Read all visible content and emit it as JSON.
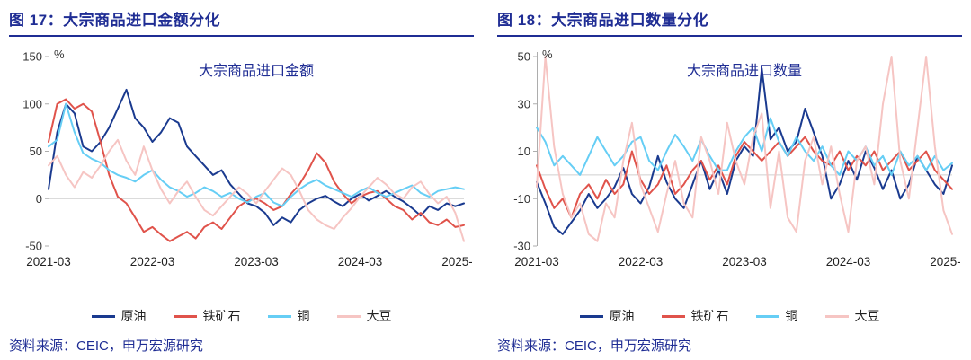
{
  "figures": [
    {
      "title": "图 17：大宗商品进口金额分化",
      "source": "资料来源：CEIC，申万宏源研究"
    },
    {
      "title": "图 18：大宗商品进口数量分化",
      "source": "资料来源：CEIC，申万宏源研究"
    }
  ],
  "chart_data": [
    {
      "type": "line",
      "title": "大宗商品进口金额",
      "ylabel": "%",
      "ylim": [
        -50,
        150
      ],
      "yticks": [
        150,
        100,
        50,
        0,
        -50
      ],
      "grid": "zero-line-only",
      "legend_position": "bottom",
      "xticks": [
        "2021-03",
        "2022-03",
        "2023-03",
        "2024-03",
        "2025-03"
      ],
      "x": [
        "2021-03",
        "2021-04",
        "2021-05",
        "2021-06",
        "2021-07",
        "2021-08",
        "2021-09",
        "2021-10",
        "2021-11",
        "2021-12",
        "2022-01",
        "2022-02",
        "2022-03",
        "2022-04",
        "2022-05",
        "2022-06",
        "2022-07",
        "2022-08",
        "2022-09",
        "2022-10",
        "2022-11",
        "2022-12",
        "2023-01",
        "2023-02",
        "2023-03",
        "2023-04",
        "2023-05",
        "2023-06",
        "2023-07",
        "2023-08",
        "2023-09",
        "2023-10",
        "2023-11",
        "2023-12",
        "2024-01",
        "2024-02",
        "2024-03",
        "2024-04",
        "2024-05",
        "2024-06",
        "2024-07",
        "2024-08",
        "2024-09",
        "2024-10",
        "2024-11",
        "2024-12",
        "2025-01",
        "2025-02",
        "2025-03"
      ],
      "series": [
        {
          "id": "crude-oil",
          "name": "原油",
          "color": "#1a3a8f",
          "values": [
            10,
            70,
            100,
            90,
            55,
            50,
            60,
            75,
            95,
            115,
            85,
            75,
            60,
            70,
            85,
            80,
            55,
            45,
            35,
            25,
            30,
            15,
            5,
            -5,
            -8,
            -15,
            -28,
            -20,
            -25,
            -12,
            -5,
            0,
            3,
            -3,
            -8,
            0,
            5,
            -2,
            3,
            8,
            2,
            -3,
            -10,
            -18,
            -8,
            -12,
            -5,
            -8,
            -5
          ]
        },
        {
          "id": "iron-ore",
          "name": "铁矿石",
          "color": "#e0534b",
          "values": [
            60,
            100,
            105,
            95,
            100,
            92,
            60,
            25,
            2,
            -5,
            -20,
            -35,
            -30,
            -38,
            -45,
            -40,
            -35,
            -42,
            -30,
            -25,
            -32,
            -20,
            -8,
            -2,
            0,
            -5,
            -12,
            -8,
            5,
            15,
            30,
            48,
            38,
            18,
            5,
            -5,
            2,
            6,
            8,
            0,
            -8,
            -12,
            -22,
            -15,
            -25,
            -28,
            -22,
            -30,
            -28
          ]
        },
        {
          "id": "copper",
          "name": "铜",
          "color": "#66cef5",
          "values": [
            55,
            62,
            100,
            70,
            48,
            42,
            38,
            30,
            25,
            22,
            18,
            25,
            30,
            20,
            12,
            8,
            2,
            6,
            12,
            8,
            2,
            6,
            0,
            -4,
            2,
            6,
            -4,
            -8,
            2,
            10,
            16,
            20,
            14,
            10,
            6,
            2,
            8,
            12,
            6,
            2,
            6,
            10,
            14,
            6,
            2,
            8,
            10,
            12,
            10
          ]
        },
        {
          "id": "soybean",
          "name": "大豆",
          "color": "#f6c5c3",
          "values": [
            35,
            45,
            25,
            12,
            28,
            22,
            35,
            50,
            62,
            40,
            25,
            55,
            30,
            10,
            -5,
            8,
            18,
            2,
            -12,
            -18,
            -8,
            2,
            12,
            5,
            -5,
            8,
            20,
            32,
            25,
            8,
            -12,
            -22,
            -28,
            -32,
            -20,
            -10,
            2,
            12,
            22,
            15,
            5,
            0,
            12,
            18,
            5,
            -5,
            2,
            -15,
            -45
          ]
        }
      ]
    },
    {
      "type": "line",
      "title": "大宗商品进口数量",
      "ylabel": "%",
      "ylim": [
        -30,
        50
      ],
      "yticks": [
        50,
        30,
        10,
        -10,
        -30
      ],
      "grid": "zero-line-only",
      "legend_position": "bottom",
      "xticks": [
        "2021-03",
        "2022-03",
        "2023-03",
        "2024-03",
        "2025-03"
      ],
      "x": [
        "2021-03",
        "2021-04",
        "2021-05",
        "2021-06",
        "2021-07",
        "2021-08",
        "2021-09",
        "2021-10",
        "2021-11",
        "2021-12",
        "2022-01",
        "2022-02",
        "2022-03",
        "2022-04",
        "2022-05",
        "2022-06",
        "2022-07",
        "2022-08",
        "2022-09",
        "2022-10",
        "2022-11",
        "2022-12",
        "2023-01",
        "2023-02",
        "2023-03",
        "2023-04",
        "2023-05",
        "2023-06",
        "2023-07",
        "2023-08",
        "2023-09",
        "2023-10",
        "2023-11",
        "2023-12",
        "2024-01",
        "2024-02",
        "2024-03",
        "2024-04",
        "2024-05",
        "2024-06",
        "2024-07",
        "2024-08",
        "2024-09",
        "2024-10",
        "2024-11",
        "2024-12",
        "2025-01",
        "2025-02",
        "2025-03"
      ],
      "series": [
        {
          "id": "crude-oil",
          "name": "原油",
          "color": "#1a3a8f",
          "values": [
            -3,
            -12,
            -22,
            -25,
            -20,
            -15,
            -8,
            -14,
            -10,
            -5,
            3,
            -8,
            -12,
            -5,
            8,
            -3,
            -10,
            -14,
            -4,
            6,
            -6,
            2,
            -8,
            6,
            12,
            8,
            45,
            15,
            20,
            10,
            14,
            28,
            18,
            8,
            -10,
            -4,
            6,
            -2,
            10,
            3,
            -6,
            2,
            -10,
            -4,
            8,
            2,
            -4,
            -8,
            4
          ]
        },
        {
          "id": "iron-ore",
          "name": "铁矿石",
          "color": "#e0534b",
          "values": [
            4,
            -6,
            -14,
            -10,
            -18,
            -8,
            -4,
            -10,
            -2,
            -8,
            -4,
            10,
            -2,
            -8,
            -4,
            4,
            -8,
            -4,
            2,
            6,
            -2,
            4,
            -4,
            8,
            14,
            10,
            6,
            10,
            14,
            8,
            12,
            16,
            10,
            6,
            4,
            10,
            2,
            8,
            4,
            10,
            2,
            6,
            10,
            2,
            6,
            10,
            2,
            -2,
            -6
          ]
        },
        {
          "id": "copper",
          "name": "铜",
          "color": "#66cef5",
          "values": [
            20,
            14,
            4,
            8,
            4,
            0,
            8,
            16,
            10,
            4,
            8,
            14,
            16,
            6,
            2,
            10,
            17,
            12,
            6,
            15,
            8,
            2,
            2,
            10,
            16,
            20,
            10,
            24,
            14,
            8,
            16,
            10,
            6,
            12,
            4,
            0,
            10,
            6,
            12,
            4,
            8,
            0,
            10,
            4,
            8,
            2,
            8,
            2,
            5
          ]
        },
        {
          "id": "soybean",
          "name": "大豆",
          "color": "#f6c5c3",
          "values": [
            -5,
            50,
            12,
            -8,
            -18,
            -12,
            -25,
            -28,
            -12,
            -18,
            6,
            22,
            -4,
            -14,
            -24,
            -8,
            6,
            -12,
            -18,
            16,
            6,
            -8,
            22,
            6,
            -4,
            16,
            26,
            -14,
            10,
            -18,
            -24,
            6,
            16,
            -4,
            12,
            -8,
            -24,
            6,
            12,
            -4,
            30,
            50,
            6,
            -10,
            20,
            50,
            12,
            -15,
            -25
          ]
        }
      ]
    }
  ]
}
